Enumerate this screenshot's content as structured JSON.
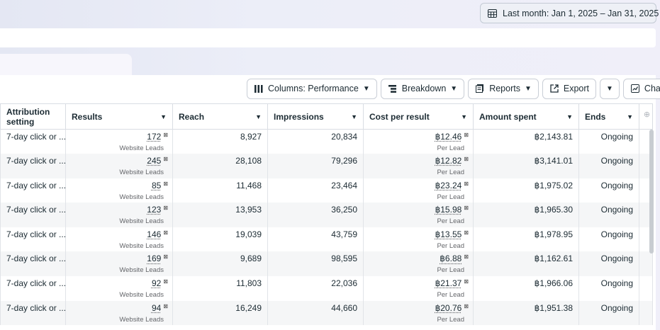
{
  "date_range": {
    "label": "Last month: Jan 1, 2025 – Jan 31, 2025",
    "icon": "calendar-icon"
  },
  "toolbar": {
    "columns_label": "Columns: Performance",
    "breakdown_label": "Breakdown",
    "reports_label": "Reports",
    "export_label": "Export",
    "charts_label": "Charts"
  },
  "table": {
    "headers": {
      "attribution": "Attribution setting",
      "results": "Results",
      "reach": "Reach",
      "impressions": "Impressions",
      "cost_per_result": "Cost per result",
      "amount_spent": "Amount spent",
      "ends": "Ends"
    },
    "rows": [
      {
        "attribution": "7-day click or ...",
        "results": "172",
        "results_sub": "Website Leads",
        "reach": "8,927",
        "impressions": "20,834",
        "cpr": "฿12.46",
        "cpr_sub": "Per Lead",
        "spent": "฿2,143.81",
        "ends": "Ongoing"
      },
      {
        "attribution": "7-day click or ...",
        "results": "245",
        "results_sub": "Website Leads",
        "reach": "28,108",
        "impressions": "79,296",
        "cpr": "฿12.82",
        "cpr_sub": "Per Lead",
        "spent": "฿3,141.01",
        "ends": "Ongoing"
      },
      {
        "attribution": "7-day click or ...",
        "results": "85",
        "results_sub": "Website Leads",
        "reach": "11,468",
        "impressions": "23,464",
        "cpr": "฿23.24",
        "cpr_sub": "Per Lead",
        "spent": "฿1,975.02",
        "ends": "Ongoing"
      },
      {
        "attribution": "7-day click or ...",
        "results": "123",
        "results_sub": "Website Leads",
        "reach": "13,953",
        "impressions": "36,250",
        "cpr": "฿15.98",
        "cpr_sub": "Per Lead",
        "spent": "฿1,965.30",
        "ends": "Ongoing"
      },
      {
        "attribution": "7-day click or ...",
        "results": "146",
        "results_sub": "Website Leads",
        "reach": "19,039",
        "impressions": "43,759",
        "cpr": "฿13.55",
        "cpr_sub": "Per Lead",
        "spent": "฿1,978.95",
        "ends": "Ongoing"
      },
      {
        "attribution": "7-day click or ...",
        "results": "169",
        "results_sub": "Website Leads",
        "reach": "9,689",
        "impressions": "98,595",
        "cpr": "฿6.88",
        "cpr_sub": "Per Lead",
        "spent": "฿1,162.61",
        "ends": "Ongoing"
      },
      {
        "attribution": "7-day click or ...",
        "results": "92",
        "results_sub": "Website Leads",
        "reach": "11,803",
        "impressions": "22,036",
        "cpr": "฿21.37",
        "cpr_sub": "Per Lead",
        "spent": "฿1,966.06",
        "ends": "Ongoing"
      },
      {
        "attribution": "7-day click or ...",
        "results": "94",
        "results_sub": "Website Leads",
        "reach": "16,249",
        "impressions": "44,660",
        "cpr": "฿20.76",
        "cpr_sub": "Per Lead",
        "spent": "฿1,951.38",
        "ends": "Ongoing"
      }
    ]
  }
}
